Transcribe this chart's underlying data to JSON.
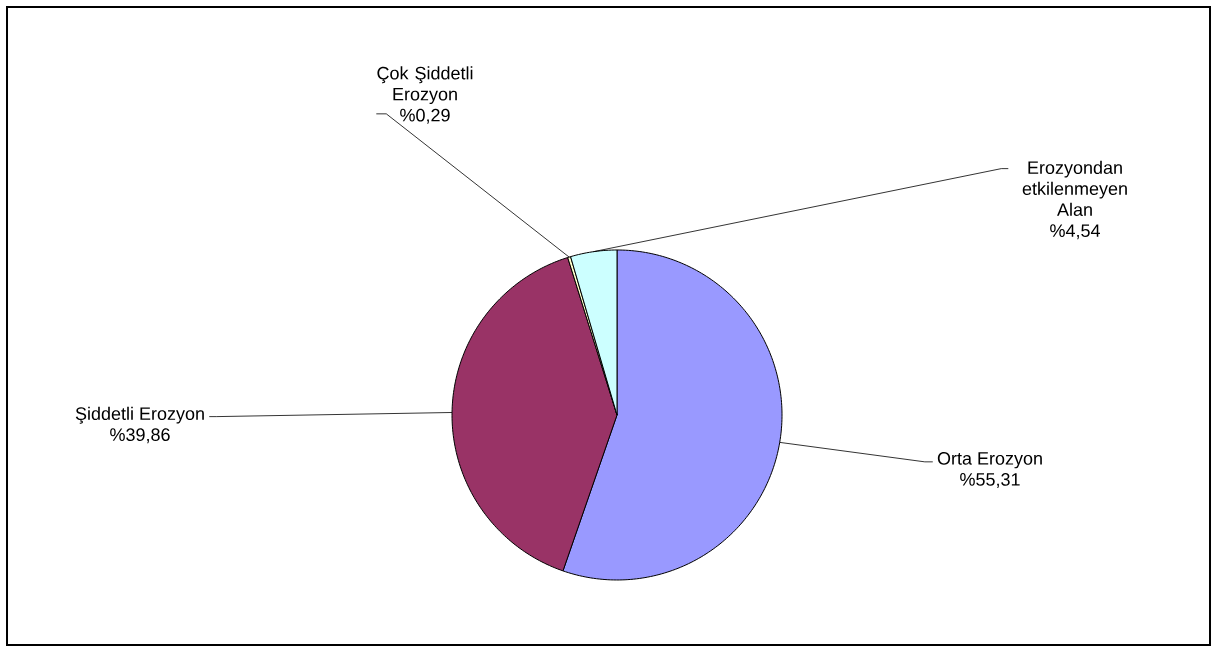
{
  "chart_data": {
    "type": "pie",
    "categories": [
      "Orta Erozyon",
      "Şiddetli Erozyon",
      "Çok Şiddetli Erozyon",
      "Erozyondan etkilenmeyen Alan"
    ],
    "values": [
      55.31,
      39.86,
      0.29,
      4.54
    ],
    "value_labels": [
      "%55,31",
      "%39,86",
      "%0,29",
      "%4,54"
    ],
    "colors": [
      "#9999ff",
      "#993366",
      "#ffffcc",
      "#ccffff"
    ]
  }
}
